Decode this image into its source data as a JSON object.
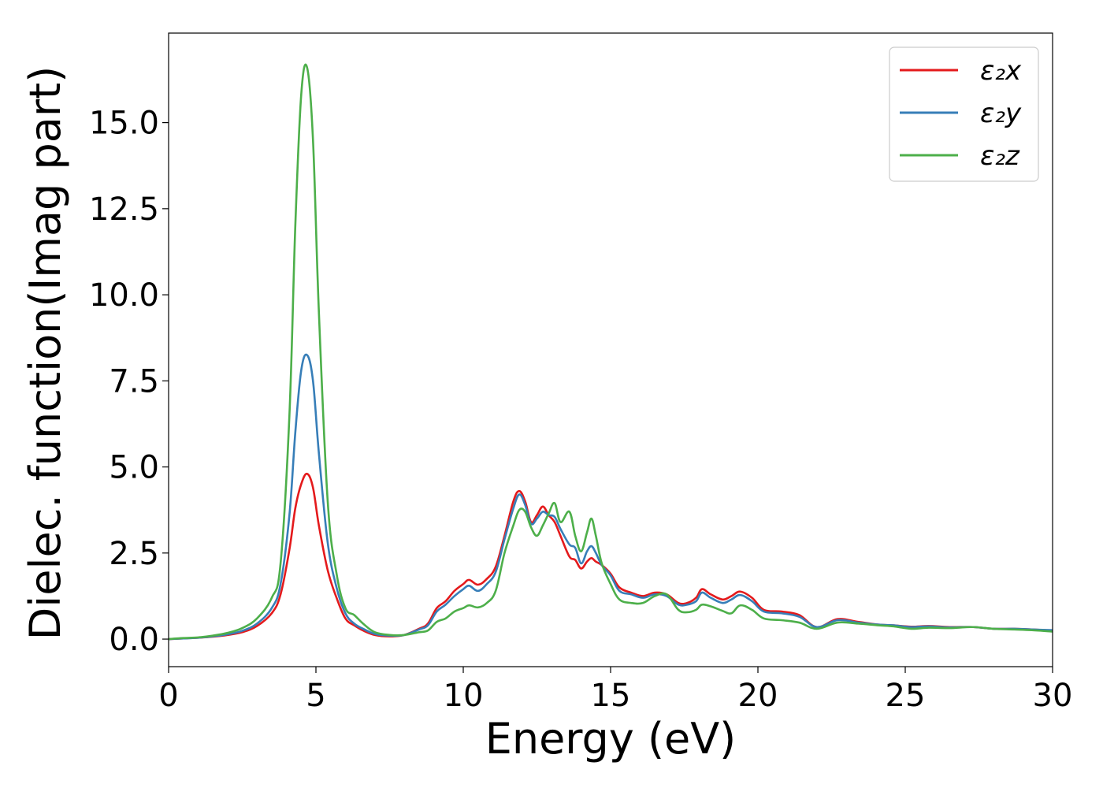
{
  "chart_data": {
    "type": "line",
    "title": "",
    "xlabel": "Energy (eV)",
    "ylabel": "Dielec. function(Imag part)",
    "xlim": [
      0,
      30
    ],
    "ylim": [
      -0.8,
      17.6
    ],
    "xticks": [
      0,
      5,
      10,
      15,
      20,
      25,
      30
    ],
    "xtick_labels": [
      "0",
      "5",
      "10",
      "15",
      "20",
      "25",
      "30"
    ],
    "yticks": [
      0.0,
      2.5,
      5.0,
      7.5,
      10.0,
      12.5,
      15.0
    ],
    "ytick_labels": [
      "0.0",
      "2.5",
      "5.0",
      "7.5",
      "10.0",
      "12.5",
      "15.0"
    ],
    "grid": false,
    "legend_position": "top-right",
    "x": [
      0,
      0.5,
      1,
      1.5,
      2,
      2.5,
      3,
      3.5,
      3.8,
      4.1,
      4.3,
      4.5,
      4.7,
      4.9,
      5.1,
      5.4,
      5.7,
      6.0,
      6.3,
      6.6,
      7.0,
      7.5,
      8.0,
      8.5,
      8.8,
      9.1,
      9.4,
      9.7,
      10.0,
      10.2,
      10.5,
      10.8,
      11.1,
      11.4,
      11.7,
      11.9,
      12.1,
      12.3,
      12.5,
      12.7,
      12.9,
      13.1,
      13.3,
      13.6,
      13.8,
      14.0,
      14.2,
      14.35,
      14.5,
      14.7,
      15.0,
      15.3,
      15.7,
      16.1,
      16.5,
      16.9,
      17.3,
      17.6,
      17.9,
      18.1,
      18.4,
      18.8,
      19.1,
      19.4,
      19.8,
      20.2,
      20.8,
      21.4,
      22.0,
      22.7,
      23.4,
      24.1,
      24.6,
      25.2,
      25.8,
      26.5,
      27.3,
      28.0,
      28.7,
      29.3,
      30.0
    ],
    "series": [
      {
        "name": "ε₂x",
        "color": "#e41a1c",
        "values": [
          0.0,
          0.02,
          0.04,
          0.07,
          0.12,
          0.2,
          0.38,
          0.75,
          1.3,
          2.6,
          3.8,
          4.5,
          4.8,
          4.4,
          3.3,
          2.0,
          1.2,
          0.6,
          0.4,
          0.25,
          0.12,
          0.08,
          0.12,
          0.3,
          0.45,
          0.9,
          1.1,
          1.4,
          1.6,
          1.72,
          1.58,
          1.75,
          2.1,
          3.0,
          4.0,
          4.3,
          4.0,
          3.4,
          3.6,
          3.85,
          3.6,
          3.4,
          3.0,
          2.4,
          2.3,
          2.05,
          2.25,
          2.35,
          2.25,
          2.15,
          1.9,
          1.5,
          1.35,
          1.25,
          1.35,
          1.3,
          1.05,
          1.05,
          1.2,
          1.45,
          1.3,
          1.15,
          1.25,
          1.38,
          1.2,
          0.85,
          0.8,
          0.7,
          0.35,
          0.58,
          0.5,
          0.42,
          0.4,
          0.36,
          0.38,
          0.35,
          0.35,
          0.3,
          0.3,
          0.28,
          0.25
        ]
      },
      {
        "name": "ε₂y",
        "color": "#377eb8",
        "values": [
          0.0,
          0.02,
          0.04,
          0.08,
          0.14,
          0.24,
          0.45,
          0.9,
          1.6,
          3.6,
          6.0,
          7.8,
          8.25,
          7.5,
          5.4,
          2.8,
          1.5,
          0.75,
          0.45,
          0.3,
          0.15,
          0.1,
          0.12,
          0.28,
          0.4,
          0.8,
          1.0,
          1.25,
          1.45,
          1.55,
          1.4,
          1.6,
          1.95,
          2.9,
          3.8,
          4.2,
          3.9,
          3.35,
          3.5,
          3.7,
          3.6,
          3.55,
          3.2,
          2.75,
          2.65,
          2.2,
          2.55,
          2.7,
          2.5,
          2.15,
          1.85,
          1.4,
          1.3,
          1.2,
          1.3,
          1.25,
          1.0,
          1.0,
          1.1,
          1.35,
          1.2,
          1.05,
          1.15,
          1.28,
          1.1,
          0.8,
          0.75,
          0.65,
          0.35,
          0.55,
          0.48,
          0.42,
          0.4,
          0.35,
          0.37,
          0.34,
          0.35,
          0.3,
          0.3,
          0.28,
          0.26
        ]
      },
      {
        "name": "ε₂z",
        "color": "#4daf4a",
        "values": [
          0.0,
          0.03,
          0.05,
          0.1,
          0.18,
          0.32,
          0.6,
          1.2,
          2.2,
          6.5,
          12.0,
          15.8,
          16.6,
          14.5,
          9.5,
          4.0,
          1.9,
          0.9,
          0.7,
          0.45,
          0.2,
          0.12,
          0.12,
          0.2,
          0.25,
          0.5,
          0.6,
          0.8,
          0.9,
          0.98,
          0.92,
          1.05,
          1.4,
          2.5,
          3.3,
          3.75,
          3.7,
          3.25,
          3.0,
          3.3,
          3.65,
          3.95,
          3.4,
          3.7,
          3.0,
          2.55,
          3.1,
          3.5,
          3.0,
          2.2,
          1.6,
          1.15,
          1.05,
          1.05,
          1.25,
          1.3,
          0.85,
          0.78,
          0.85,
          1.0,
          0.95,
          0.82,
          0.75,
          0.98,
          0.85,
          0.6,
          0.55,
          0.48,
          0.3,
          0.48,
          0.45,
          0.4,
          0.37,
          0.3,
          0.33,
          0.32,
          0.35,
          0.3,
          0.28,
          0.26,
          0.22
        ]
      }
    ]
  }
}
